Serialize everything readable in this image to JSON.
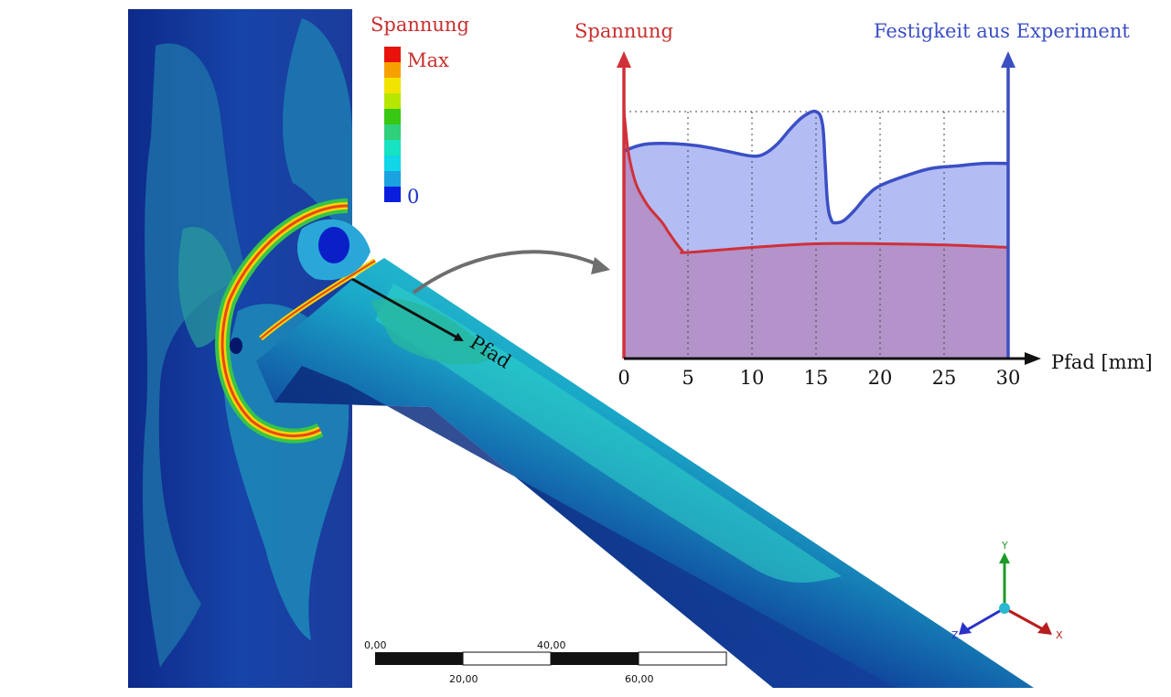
{
  "fea": {
    "legend_title": "Spannung",
    "legend_max": "Max",
    "legend_min": "0",
    "legend_colors": [
      "#e8140c",
      "#f7a100",
      "#f1e400",
      "#b7e600",
      "#38c814",
      "#30d07a",
      "#17e2c2",
      "#10d6e8",
      "#1aa3e0",
      "#0a1ee0"
    ],
    "path_label": "Pfad",
    "scale_ticks_top": [
      "0,00",
      "40,00"
    ],
    "scale_ticks_bottom": [
      "20,00",
      "60,00"
    ],
    "axis_triad": {
      "y": "Y",
      "x": "X",
      "z": "Z"
    }
  },
  "chart_data": {
    "type": "area",
    "left_axis_label": "Spannung",
    "right_axis_label": "Festigkeit aus Experiment",
    "xlabel": "Pfad [mm]",
    "xticks": [
      "0",
      "5",
      "10",
      "15",
      "20",
      "25",
      "30"
    ],
    "xlim": [
      0,
      30
    ],
    "ylim": [
      0,
      1
    ],
    "grid": "dotted-vertical",
    "colors": {
      "spannung": "#d0303a",
      "festigkeit": "#3b4fc4"
    },
    "series": [
      {
        "key": "festigkeit",
        "x": [
          0,
          1,
          2,
          4,
          6,
          8,
          10,
          11,
          12,
          13,
          14,
          15,
          15.5,
          15.7,
          15.9,
          16.2,
          16.6,
          17.2,
          18,
          19,
          20,
          22,
          24,
          26,
          28,
          30
        ],
        "values": [
          0.84,
          0.86,
          0.87,
          0.87,
          0.86,
          0.84,
          0.82,
          0.83,
          0.87,
          0.93,
          0.98,
          1.0,
          0.95,
          0.8,
          0.63,
          0.56,
          0.55,
          0.56,
          0.6,
          0.66,
          0.7,
          0.74,
          0.77,
          0.78,
          0.79,
          0.79
        ]
      },
      {
        "key": "spannung",
        "x": [
          0,
          0.1,
          0.3,
          0.6,
          1,
          1.5,
          2,
          3,
          3.5,
          4.5,
          5,
          10,
          15,
          20,
          25,
          30
        ],
        "values": [
          1.0,
          0.95,
          0.85,
          0.77,
          0.7,
          0.65,
          0.61,
          0.55,
          0.51,
          0.44,
          0.43,
          0.45,
          0.465,
          0.465,
          0.46,
          0.45
        ]
      }
    ]
  }
}
